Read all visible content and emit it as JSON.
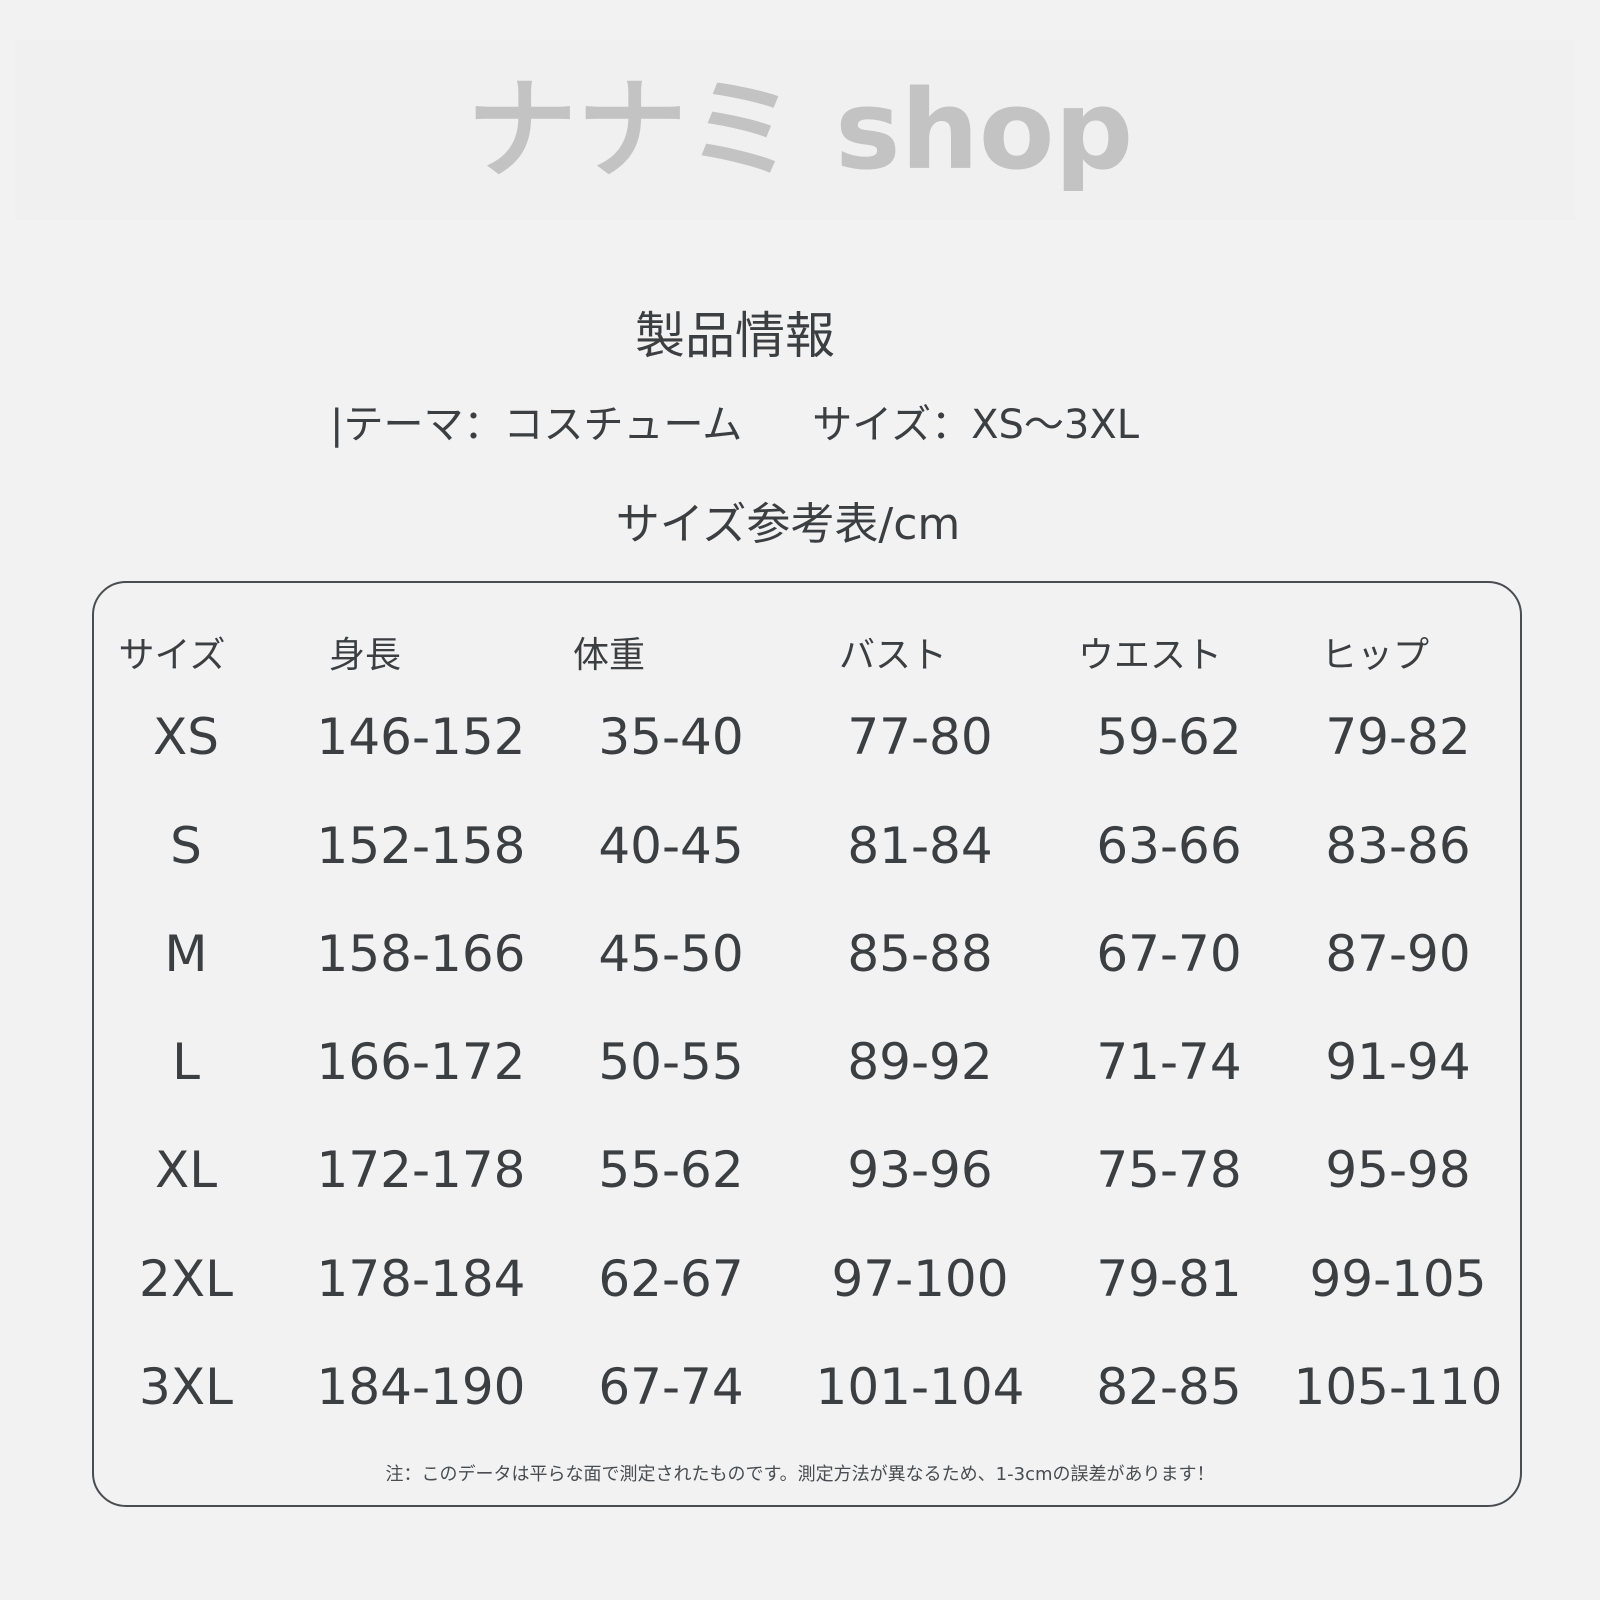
{
  "title": "製品情報",
  "info": {
    "theme": "|テーマ：コスチューム",
    "size": "サイズ：XS〜3XL"
  },
  "subtitle": "サイズ参考表/cm",
  "table": {
    "headers": [
      "サイズ",
      "身長",
      "体重",
      "バスト",
      "ウエスト",
      "ヒップ"
    ],
    "rows": [
      [
        "XS",
        "146-152",
        "35-40",
        "77-80",
        "59-62",
        "79-82"
      ],
      [
        "S",
        "152-158",
        "40-45",
        "81-84",
        "63-66",
        "83-86"
      ],
      [
        "M",
        "158-166",
        "45-50",
        "85-88",
        "67-70",
        "87-90"
      ],
      [
        "L",
        "166-172",
        "50-55",
        "89-92",
        "71-74",
        "91-94"
      ],
      [
        "XL",
        "172-178",
        "55-62",
        "93-96",
        "75-78",
        "95-98"
      ],
      [
        "2XL",
        "178-184",
        "62-67",
        "97-100",
        "79-81",
        "99-105"
      ],
      [
        "3XL",
        "184-190",
        "67-74",
        "101-104",
        "82-85",
        "105-110"
      ]
    ]
  },
  "note": "注：このデータは平らな面で測定されたものです。測定方法が異なるため、1-3cmの誤差があります！",
  "watermark": "ナナミ shop"
}
